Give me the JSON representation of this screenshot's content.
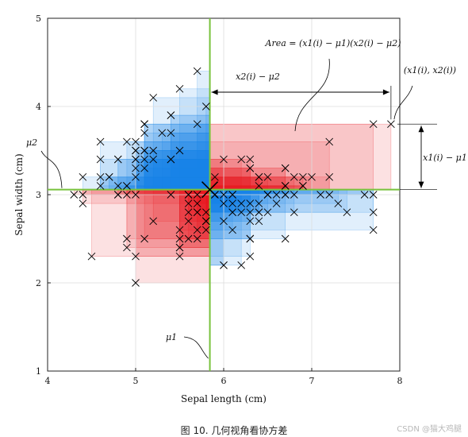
{
  "chart_data": {
    "type": "scatter",
    "title": "",
    "xlabel": "Sepal length (cm)",
    "ylabel": "Sepal width (cm)",
    "xlim": [
      4,
      8
    ],
    "ylim": [
      1,
      5
    ],
    "xticks": [
      "4",
      "5",
      "6",
      "7",
      "8"
    ],
    "yticks": [
      "1",
      "2",
      "3",
      "4",
      "5"
    ],
    "grid": true,
    "mean": {
      "x": 5.843,
      "y": 3.057,
      "label_x": "μ1",
      "label_y": "μ2"
    },
    "colors": {
      "positive": "#e8191f",
      "negative": "#1a87e6",
      "mean_lines": "#78c23c",
      "markers": "#000000"
    },
    "points": [
      [
        5.1,
        3.5
      ],
      [
        4.9,
        3.0
      ],
      [
        4.7,
        3.2
      ],
      [
        4.6,
        3.1
      ],
      [
        5.0,
        3.6
      ],
      [
        5.4,
        3.9
      ],
      [
        4.6,
        3.4
      ],
      [
        5.0,
        3.4
      ],
      [
        4.4,
        2.9
      ],
      [
        4.9,
        3.1
      ],
      [
        5.4,
        3.7
      ],
      [
        4.8,
        3.4
      ],
      [
        4.8,
        3.0
      ],
      [
        4.3,
        3.0
      ],
      [
        5.8,
        4.0
      ],
      [
        5.7,
        4.4
      ],
      [
        5.4,
        3.9
      ],
      [
        5.1,
        3.5
      ],
      [
        5.7,
        3.8
      ],
      [
        5.1,
        3.8
      ],
      [
        5.4,
        3.4
      ],
      [
        5.1,
        3.7
      ],
      [
        4.6,
        3.6
      ],
      [
        5.1,
        3.3
      ],
      [
        4.8,
        3.4
      ],
      [
        5.0,
        3.0
      ],
      [
        5.0,
        3.4
      ],
      [
        5.2,
        3.5
      ],
      [
        5.2,
        3.4
      ],
      [
        4.7,
        3.2
      ],
      [
        4.8,
        3.1
      ],
      [
        5.4,
        3.4
      ],
      [
        5.2,
        4.1
      ],
      [
        5.5,
        4.2
      ],
      [
        4.9,
        3.1
      ],
      [
        5.0,
        3.2
      ],
      [
        5.5,
        3.5
      ],
      [
        4.9,
        3.6
      ],
      [
        4.4,
        3.0
      ],
      [
        5.1,
        3.4
      ],
      [
        5.0,
        3.5
      ],
      [
        4.5,
        2.3
      ],
      [
        4.4,
        3.2
      ],
      [
        5.0,
        3.5
      ],
      [
        5.1,
        3.8
      ],
      [
        4.8,
        3.0
      ],
      [
        5.1,
        3.8
      ],
      [
        4.6,
        3.2
      ],
      [
        5.3,
        3.7
      ],
      [
        5.0,
        3.3
      ],
      [
        7.0,
        3.2
      ],
      [
        6.4,
        3.2
      ],
      [
        6.9,
        3.1
      ],
      [
        5.5,
        2.3
      ],
      [
        6.5,
        2.8
      ],
      [
        5.7,
        2.8
      ],
      [
        6.3,
        3.3
      ],
      [
        4.9,
        2.4
      ],
      [
        6.6,
        2.9
      ],
      [
        5.2,
        2.7
      ],
      [
        5.0,
        2.0
      ],
      [
        5.9,
        3.0
      ],
      [
        6.0,
        2.2
      ],
      [
        6.1,
        2.9
      ],
      [
        5.6,
        2.9
      ],
      [
        6.7,
        3.1
      ],
      [
        5.6,
        3.0
      ],
      [
        5.8,
        2.7
      ],
      [
        6.2,
        2.2
      ],
      [
        5.6,
        2.5
      ],
      [
        5.9,
        3.2
      ],
      [
        6.1,
        2.8
      ],
      [
        6.3,
        2.5
      ],
      [
        6.1,
        2.8
      ],
      [
        6.4,
        2.9
      ],
      [
        6.6,
        3.0
      ],
      [
        6.8,
        2.8
      ],
      [
        6.7,
        3.0
      ],
      [
        6.0,
        2.9
      ],
      [
        5.7,
        2.6
      ],
      [
        5.5,
        2.4
      ],
      [
        5.5,
        2.4
      ],
      [
        5.8,
        2.7
      ],
      [
        6.0,
        2.7
      ],
      [
        5.4,
        3.0
      ],
      [
        6.0,
        3.4
      ],
      [
        6.7,
        3.1
      ],
      [
        6.3,
        2.3
      ],
      [
        5.6,
        3.0
      ],
      [
        5.5,
        2.5
      ],
      [
        5.5,
        2.6
      ],
      [
        6.1,
        3.0
      ],
      [
        5.8,
        2.6
      ],
      [
        5.0,
        2.3
      ],
      [
        5.6,
        2.7
      ],
      [
        5.7,
        3.0
      ],
      [
        5.7,
        2.9
      ],
      [
        6.2,
        2.9
      ],
      [
        5.1,
        2.5
      ],
      [
        5.7,
        2.8
      ],
      [
        6.3,
        3.3
      ],
      [
        5.8,
        2.7
      ],
      [
        7.1,
        3.0
      ],
      [
        6.3,
        2.9
      ],
      [
        6.5,
        3.0
      ],
      [
        7.6,
        3.0
      ],
      [
        4.9,
        2.5
      ],
      [
        7.3,
        2.9
      ],
      [
        6.7,
        2.5
      ],
      [
        7.2,
        3.6
      ],
      [
        6.5,
        3.2
      ],
      [
        6.4,
        2.7
      ],
      [
        6.8,
        3.0
      ],
      [
        5.7,
        2.5
      ],
      [
        5.8,
        2.8
      ],
      [
        6.4,
        3.2
      ],
      [
        6.5,
        3.0
      ],
      [
        7.7,
        3.8
      ],
      [
        7.7,
        2.6
      ],
      [
        6.0,
        2.2
      ],
      [
        6.9,
        3.2
      ],
      [
        5.6,
        2.8
      ],
      [
        7.7,
        2.8
      ],
      [
        6.3,
        2.7
      ],
      [
        6.7,
        3.3
      ],
      [
        7.2,
        3.2
      ],
      [
        6.2,
        2.8
      ],
      [
        6.1,
        3.0
      ],
      [
        6.4,
        2.8
      ],
      [
        7.2,
        3.0
      ],
      [
        7.4,
        2.8
      ],
      [
        7.9,
        3.8
      ],
      [
        6.4,
        2.8
      ],
      [
        6.3,
        2.8
      ],
      [
        6.1,
        2.6
      ],
      [
        7.7,
        3.0
      ],
      [
        6.3,
        3.4
      ],
      [
        6.4,
        3.1
      ],
      [
        6.0,
        3.0
      ],
      [
        6.9,
        3.1
      ],
      [
        6.7,
        3.1
      ],
      [
        6.9,
        3.1
      ],
      [
        5.8,
        2.7
      ],
      [
        6.8,
        3.2
      ],
      [
        6.7,
        3.3
      ],
      [
        6.7,
        3.0
      ],
      [
        6.3,
        2.5
      ],
      [
        6.5,
        3.0
      ],
      [
        6.2,
        3.4
      ],
      [
        5.9,
        3.0
      ]
    ],
    "annotations": {
      "area": "Area = (x1(i) − μ1)(x2(i) − μ2)",
      "dx_label": "x2(i) − μ2",
      "dy_label": "x1(i) − μ1",
      "point_label": "(x1(i), x2(i))",
      "mu1": "μ1",
      "mu2": "μ2"
    }
  },
  "caption": "图 10. 几何视角看协方差",
  "watermark": "CSDN @猫大鸡腿"
}
